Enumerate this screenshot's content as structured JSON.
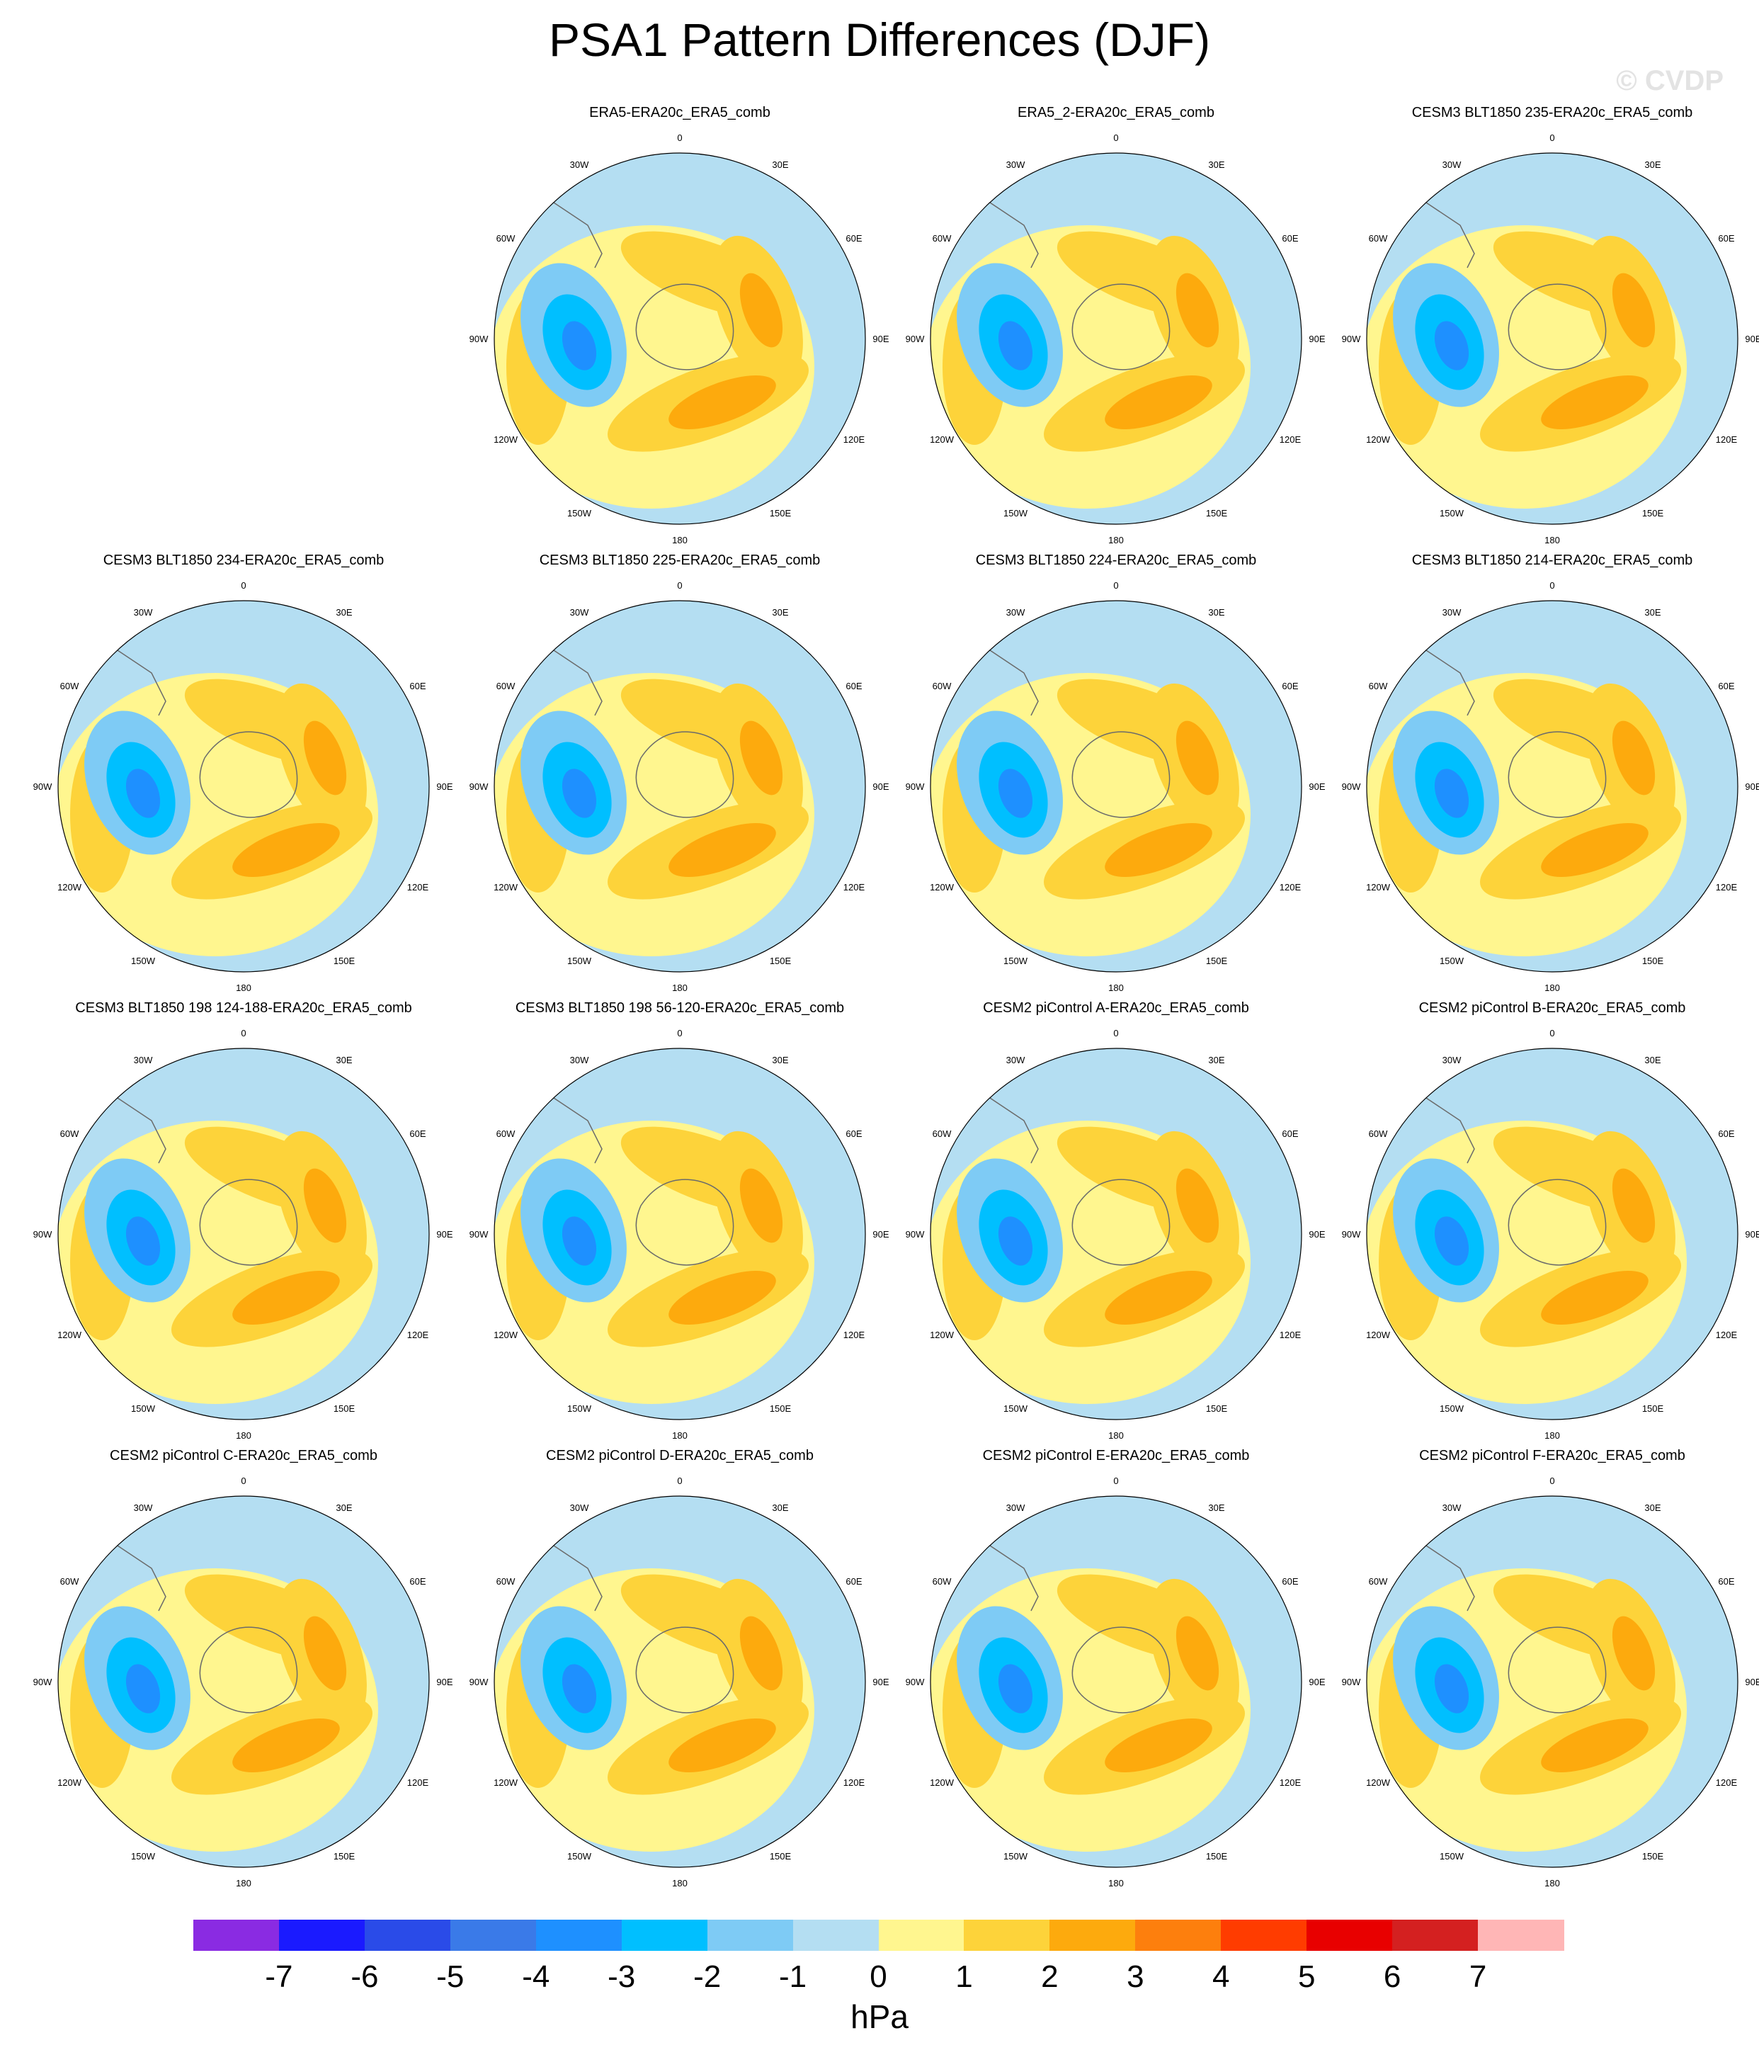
{
  "title": "PSA1 Pattern Differences (DJF)",
  "watermark": "© CVDP",
  "lon_labels": [
    "0",
    "30E",
    "60E",
    "90E",
    "120E",
    "150E",
    "180",
    "150W",
    "120W",
    "90W",
    "60W",
    "30W"
  ],
  "panels": [
    {
      "title": "ERA5-ERA20c_ERA5_comb",
      "row": 0,
      "col": 1
    },
    {
      "title": "ERA5_2-ERA20c_ERA5_comb",
      "row": 0,
      "col": 2
    },
    {
      "title": "CESM3 BLT1850 235-ERA20c_ERA5_comb",
      "row": 0,
      "col": 3
    },
    {
      "title": "CESM3 BLT1850 234-ERA20c_ERA5_comb",
      "row": 1,
      "col": 0
    },
    {
      "title": "CESM3 BLT1850 225-ERA20c_ERA5_comb",
      "row": 1,
      "col": 1
    },
    {
      "title": "CESM3 BLT1850 224-ERA20c_ERA5_comb",
      "row": 1,
      "col": 2
    },
    {
      "title": "CESM3 BLT1850 214-ERA20c_ERA5_comb",
      "row": 1,
      "col": 3
    },
    {
      "title": "CESM3 BLT1850 198 124-188-ERA20c_ERA5_comb",
      "row": 2,
      "col": 0
    },
    {
      "title": "CESM3 BLT1850 198 56-120-ERA20c_ERA5_comb",
      "row": 2,
      "col": 1
    },
    {
      "title": "CESM2 piControl A-ERA20c_ERA5_comb",
      "row": 2,
      "col": 2
    },
    {
      "title": "CESM2 piControl B-ERA20c_ERA5_comb",
      "row": 2,
      "col": 3
    },
    {
      "title": "CESM2 piControl C-ERA20c_ERA5_comb",
      "row": 3,
      "col": 0
    },
    {
      "title": "CESM2 piControl D-ERA20c_ERA5_comb",
      "row": 3,
      "col": 1
    },
    {
      "title": "CESM2 piControl E-ERA20c_ERA5_comb",
      "row": 3,
      "col": 2
    },
    {
      "title": "CESM2 piControl F-ERA20c_ERA5_comb",
      "row": 3,
      "col": 3
    }
  ],
  "colorbar": {
    "units": "hPa",
    "ticks": [
      "-7",
      "-6",
      "-5",
      "-4",
      "-3",
      "-2",
      "-1",
      "0",
      "1",
      "2",
      "3",
      "4",
      "5",
      "6",
      "7"
    ],
    "colors": [
      "#8a2be2",
      "#1a1aff",
      "#2a4be8",
      "#3a7ae8",
      "#1e90ff",
      "#00bfff",
      "#7ecbf5",
      "#b4def2",
      "#fff68f",
      "#fdd33a",
      "#fdaa0d",
      "#fd7f0d",
      "#ff3c00",
      "#e80000",
      "#d42020",
      "#ffb6b6"
    ]
  },
  "colors": {
    "ocean": "#b4def2",
    "pos1": "#fff68f",
    "pos2": "#fdd33a",
    "pos3": "#fdaa0d",
    "pos4": "#fd7f0d",
    "neg2": "#7ecbf5",
    "neg3": "#00bfff",
    "neg4": "#1e90ff"
  }
}
